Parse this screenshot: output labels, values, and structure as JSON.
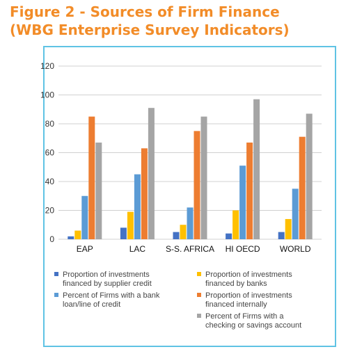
{
  "figure": {
    "title_line1": "Figure 2 - Sources of Firm Finance",
    "title_line2": "(WBG Enterprise Survey Indicators)"
  },
  "chart_data": {
    "type": "bar",
    "categories": [
      "EAP",
      "LAC",
      "S-S. AFRICA",
      "HI OECD",
      "WORLD"
    ],
    "ylim": [
      0,
      120
    ],
    "yticks": [
      0,
      20,
      40,
      60,
      80,
      100,
      120
    ],
    "grid": true,
    "legend_position": "bottom",
    "series": [
      {
        "name": "Proportion of investments financed by supplier credit",
        "color": "#4472c4",
        "values": [
          2,
          8,
          5,
          4,
          5
        ]
      },
      {
        "name": "Proportion of investments financed by banks",
        "color": "#ffc000",
        "values": [
          6,
          19,
          10,
          20,
          14
        ]
      },
      {
        "name": "Percent of Firms with a bank loan/line of credit",
        "color": "#5b9bd5",
        "values": [
          30,
          45,
          22,
          51,
          35
        ]
      },
      {
        "name": "Proportion of investments financed internally",
        "color": "#ed7d31",
        "values": [
          85,
          63,
          75,
          67,
          71
        ]
      },
      {
        "name": "Percent of Firms with a checking or savings account",
        "color": "#a5a5a5",
        "values": [
          67,
          91,
          85,
          97,
          87
        ]
      }
    ],
    "legend_lines": [
      [
        "Proportion of investments",
        "financed by supplier credit"
      ],
      [
        "Proportion of investments",
        "financed by banks"
      ],
      [
        "Percent of Firms with a bank",
        "loan/line of credit"
      ],
      [
        "Proportion of investments",
        "financed internally"
      ],
      [
        "Percent of Firms with a",
        "checking or savings account"
      ]
    ]
  }
}
